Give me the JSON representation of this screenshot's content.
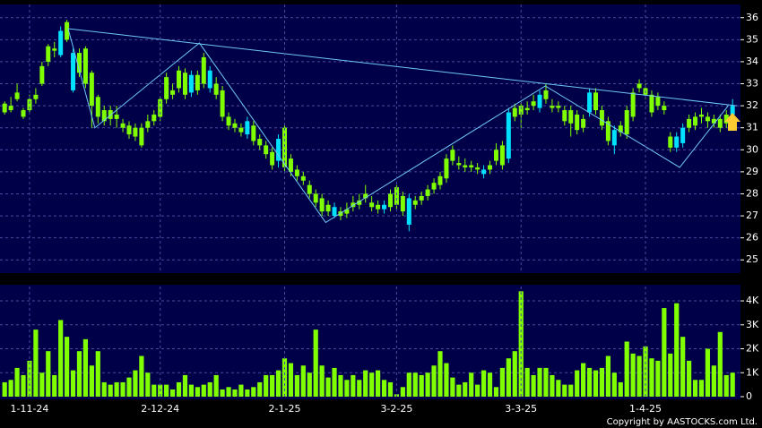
{
  "chart_data": [
    {
      "type": "candlestick",
      "open": [
        31.7,
        31.8,
        32.3,
        31.5,
        31.8,
        32.3,
        33.0,
        34.0,
        34.5,
        35.4,
        35.0,
        34.4,
        33.5,
        33.0,
        32.0,
        31.5,
        31.3,
        31.4,
        31.4,
        31.0,
        30.7,
        30.6,
        30.2,
        31.0,
        31.3,
        31.5,
        32.3,
        32.5,
        32.8,
        32.5,
        33.4,
        32.7,
        33.0,
        33.6,
        32.5,
        31.5,
        31.1,
        31.0,
        30.8,
        31.3,
        30.4,
        30.2,
        29.8,
        29.3,
        30.5,
        29.2,
        29.0,
        28.8,
        28.6,
        28.0,
        27.6,
        27.2,
        27.2,
        27.4,
        27.0,
        27.1,
        27.4,
        27.5,
        27.8,
        27.4,
        27.3,
        27.5,
        27.4,
        27.5,
        27.2,
        27.8,
        27.5,
        27.7,
        27.9,
        28.2,
        28.4,
        28.7,
        29.5,
        29.3,
        29.2,
        29.2,
        29.1,
        29.1,
        29.1,
        29.5,
        29.3,
        31.7,
        31.5,
        31.6,
        31.8,
        32.0,
        32.5,
        32.3,
        31.9,
        31.9,
        31.3,
        31.2,
        30.9,
        31.0,
        32.6,
        31.8,
        31.1,
        30.4,
        30.9,
        30.8,
        30.7,
        31.5,
        32.8,
        32.5,
        31.7,
        32.0,
        31.8,
        30.1,
        30.6,
        31.0,
        31.0,
        31.1,
        31.5,
        31.3,
        31.2,
        31.0,
        31.2,
        32.0
      ],
      "high": [
        32.2,
        32.4,
        33.0,
        31.9,
        32.5,
        32.8,
        34.0,
        34.8,
        34.9,
        35.6,
        35.9,
        34.6,
        34.6,
        34.7,
        33.6,
        32.5,
        32.0,
        32.0,
        32.0,
        31.4,
        31.3,
        31.2,
        31.2,
        31.6,
        31.8,
        32.4,
        33.5,
        33.0,
        33.8,
        33.7,
        33.6,
        33.6,
        34.4,
        33.8,
        33.3,
        32.9,
        31.7,
        31.4,
        31.2,
        31.5,
        31.3,
        30.7,
        30.4,
        30.1,
        30.7,
        31.1,
        29.8,
        29.3,
        29.0,
        28.6,
        28.2,
        28.0,
        27.7,
        27.6,
        27.4,
        27.6,
        27.9,
        28.0,
        28.4,
        27.9,
        27.7,
        27.7,
        28.2,
        28.4,
        28.1,
        28.0,
        27.9,
        28.1,
        28.4,
        28.7,
        29.0,
        29.8,
        30.2,
        29.7,
        29.6,
        29.5,
        29.4,
        29.3,
        29.5,
        30.3,
        30.4,
        31.9,
        32.1,
        32.2,
        32.2,
        32.5,
        32.7,
        33.0,
        32.3,
        32.2,
        32.0,
        32.0,
        31.8,
        31.6,
        32.8,
        32.8,
        32.0,
        31.5,
        31.1,
        31.3,
        32.0,
        32.8,
        33.2,
        33.0,
        32.7,
        32.6,
        32.2,
        30.8,
        30.8,
        31.2,
        31.6,
        31.7,
        31.9,
        31.7,
        31.6,
        31.6,
        31.8,
        32.3
      ],
      "low": [
        31.6,
        31.7,
        32.2,
        31.4,
        31.7,
        32.1,
        32.9,
        33.8,
        34.2,
        34.2,
        34.9,
        32.6,
        33.3,
        32.8,
        31.0,
        31.2,
        31.1,
        31.1,
        31.0,
        30.8,
        30.5,
        30.4,
        30.1,
        30.8,
        31.1,
        31.3,
        32.1,
        32.3,
        32.6,
        32.3,
        32.4,
        32.5,
        32.8,
        32.6,
        32.3,
        31.3,
        30.9,
        30.8,
        30.6,
        30.5,
        30.2,
        30.0,
        29.6,
        29.1,
        29.2,
        29.0,
        28.8,
        28.6,
        28.4,
        27.8,
        27.4,
        27.0,
        27.0,
        26.9,
        26.8,
        26.9,
        27.2,
        27.3,
        27.6,
        27.2,
        27.1,
        27.1,
        27.2,
        27.3,
        27.0,
        26.3,
        27.3,
        27.5,
        27.7,
        28.0,
        28.2,
        28.5,
        29.3,
        29.1,
        29.0,
        29.0,
        28.9,
        28.7,
        28.9,
        29.3,
        29.1,
        29.4,
        31.3,
        31.0,
        31.6,
        31.8,
        31.7,
        32.1,
        31.7,
        31.7,
        31.1,
        30.6,
        30.7,
        30.8,
        31.5,
        31.6,
        30.9,
        30.2,
        29.8,
        30.6,
        30.5,
        31.3,
        32.6,
        32.3,
        31.5,
        31.8,
        31.6,
        29.9,
        29.9,
        30.1,
        30.8,
        30.9,
        31.2,
        31.0,
        31.0,
        30.8,
        31.0,
        31.4
      ],
      "close": [
        32.1,
        32.0,
        32.6,
        31.8,
        32.3,
        32.5,
        33.8,
        34.7,
        34.6,
        34.3,
        35.8,
        32.7,
        34.4,
        34.6,
        33.5,
        32.4,
        31.8,
        31.8,
        31.6,
        31.2,
        31.1,
        31.0,
        31.0,
        31.3,
        31.6,
        32.3,
        33.3,
        32.7,
        33.6,
        33.5,
        32.6,
        33.4,
        34.2,
        32.8,
        33.0,
        32.7,
        31.5,
        31.2,
        31.0,
        30.7,
        31.1,
        30.5,
        30.2,
        29.9,
        29.5,
        31.0,
        29.6,
        29.1,
        28.8,
        28.4,
        28.0,
        27.8,
        27.5,
        27.0,
        27.2,
        27.3,
        27.6,
        27.7,
        28.0,
        27.6,
        27.5,
        27.3,
        28.0,
        28.3,
        27.9,
        26.6,
        27.7,
        27.9,
        28.2,
        28.5,
        28.8,
        29.6,
        30.0,
        29.4,
        29.3,
        29.3,
        29.2,
        28.9,
        29.3,
        30.0,
        30.2,
        29.6,
        31.9,
        32.0,
        31.9,
        32.2,
        31.9,
        32.7,
        32.0,
        32.0,
        31.8,
        31.8,
        31.6,
        31.4,
        31.7,
        32.6,
        31.8,
        31.3,
        30.2,
        31.1,
        31.8,
        32.6,
        33.0,
        32.8,
        32.5,
        32.4,
        32.0,
        30.6,
        30.1,
        30.3,
        31.4,
        31.5,
        31.6,
        31.5,
        31.4,
        31.4,
        31.6,
        31.6
      ],
      "up_color": "#80ff00",
      "down_color": "#00e0ff",
      "ylim": [
        24.4,
        36.6
      ],
      "yticks": [
        25,
        26,
        27,
        28,
        29,
        30,
        31,
        32,
        33,
        34,
        35,
        36
      ],
      "grid": true,
      "trend_lines": [
        {
          "color": "#6ec8f5",
          "x": [
            10.2,
            117.7
          ],
          "y": [
            35.5,
            32.0
          ]
        },
        {
          "color": "#6ec8f5",
          "x": [
            10.2,
            14.5,
            31.3,
            51.6,
            86.9,
            108.5,
            116.3
          ],
          "y": [
            35.5,
            31.0,
            34.85,
            26.7,
            32.9,
            29.2,
            32.0
          ]
        }
      ]
    },
    {
      "type": "bar",
      "color": "#80ff00",
      "categories": [
        null,
        null,
        null,
        null,
        "1-11-24",
        null,
        null,
        null,
        null,
        null,
        null,
        null,
        null,
        null,
        null,
        null,
        null,
        null,
        null,
        null,
        null,
        null,
        null,
        null,
        null,
        "2-12-24",
        null,
        null,
        null,
        null,
        null,
        null,
        null,
        null,
        null,
        null,
        null,
        null,
        null,
        null,
        null,
        null,
        null,
        null,
        null,
        "2-1-25",
        null,
        null,
        null,
        null,
        null,
        null,
        null,
        null,
        null,
        null,
        null,
        null,
        null,
        null,
        null,
        null,
        null,
        "3-2-25",
        null,
        null,
        null,
        null,
        null,
        null,
        null,
        null,
        null,
        null,
        null,
        null,
        null,
        null,
        null,
        null,
        null,
        null,
        null,
        "3-3-25",
        null,
        null,
        null,
        null,
        null,
        null,
        null,
        null,
        null,
        null,
        null,
        null,
        null,
        null,
        null,
        null,
        null,
        null,
        null,
        "1-4-25",
        null,
        null,
        null,
        null,
        null,
        null,
        null,
        null,
        null,
        null,
        null,
        null,
        null,
        null
      ],
      "values": [
        600,
        700,
        1200,
        900,
        1500,
        2800,
        1000,
        1900,
        900,
        3200,
        2500,
        1100,
        1900,
        2400,
        1300,
        1900,
        600,
        500,
        600,
        600,
        800,
        1100,
        1700,
        1000,
        500,
        500,
        500,
        300,
        600,
        900,
        500,
        400,
        500,
        600,
        900,
        300,
        400,
        300,
        500,
        300,
        400,
        600,
        900,
        900,
        1100,
        1600,
        1400,
        900,
        1300,
        1000,
        2800,
        1300,
        800,
        1200,
        900,
        700,
        900,
        700,
        1100,
        1000,
        1100,
        700,
        600,
        100,
        400,
        1000,
        1000,
        900,
        1000,
        1300,
        1900,
        1400,
        800,
        500,
        600,
        1000,
        500,
        1100,
        1000,
        400,
        1200,
        1600,
        1900,
        4400,
        1200,
        900,
        1200,
        1200,
        900,
        700,
        500,
        500,
        1100,
        1400,
        1200,
        1100,
        1200,
        1700,
        1000,
        600,
        2300,
        1800,
        1700,
        2100,
        1600,
        1500,
        3700,
        1800,
        3900,
        2500,
        1500,
        700,
        700,
        2000,
        1300,
        2700,
        900,
        1000
      ],
      "ylim": [
        0,
        4600
      ],
      "yticks": [
        0,
        {
          "value": 1000,
          "label": "1K"
        },
        {
          "value": 2000,
          "label": "2K"
        },
        {
          "value": 3000,
          "label": "3K"
        },
        {
          "value": 4000,
          "label": "4K"
        }
      ],
      "grid": true,
      "credit": "Copyright by AASTOCKS.com Ltd."
    }
  ]
}
